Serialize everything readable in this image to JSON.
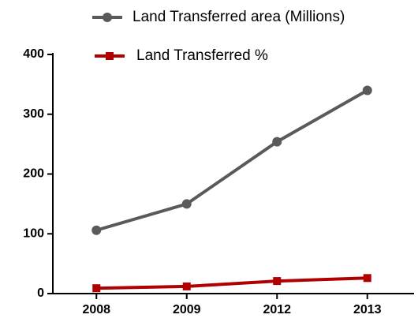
{
  "chart_data": {
    "type": "line",
    "categories": [
      "2008",
      "2009",
      "2012",
      "2013"
    ],
    "series": [
      {
        "name": "Land Transferred area (Millions)",
        "color": "#5a5a5a",
        "marker": "circle",
        "values": [
          106,
          150,
          254,
          340
        ]
      },
      {
        "name": "Land Transferred %",
        "color": "#b00000",
        "marker": "square",
        "values": [
          9,
          12,
          21,
          26
        ]
      }
    ],
    "ylim": [
      0,
      400
    ],
    "yticks": [
      0,
      100,
      200,
      300,
      400
    ],
    "grid": false
  }
}
